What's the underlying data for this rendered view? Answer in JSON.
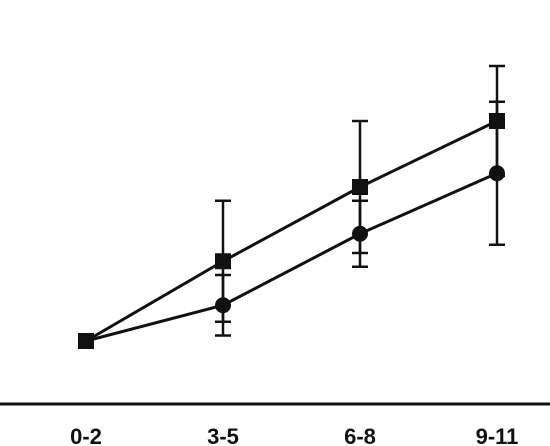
{
  "chart_data": {
    "type": "line",
    "categories": [
      "0-2",
      "3-5",
      "6-8",
      "9-11"
    ],
    "grid": false,
    "legend": "none",
    "series": [
      {
        "marker": "square",
        "color": "#111111",
        "values": [
          1.0,
          2.45,
          3.8,
          5.0
        ],
        "error": [
          null,
          1.1,
          1.2,
          1.0
        ]
      },
      {
        "marker": "circle",
        "color": "#111111",
        "values": [
          1.0,
          1.65,
          2.95,
          4.05
        ],
        "error": [
          null,
          0.55,
          0.6,
          1.3
        ]
      }
    ]
  }
}
